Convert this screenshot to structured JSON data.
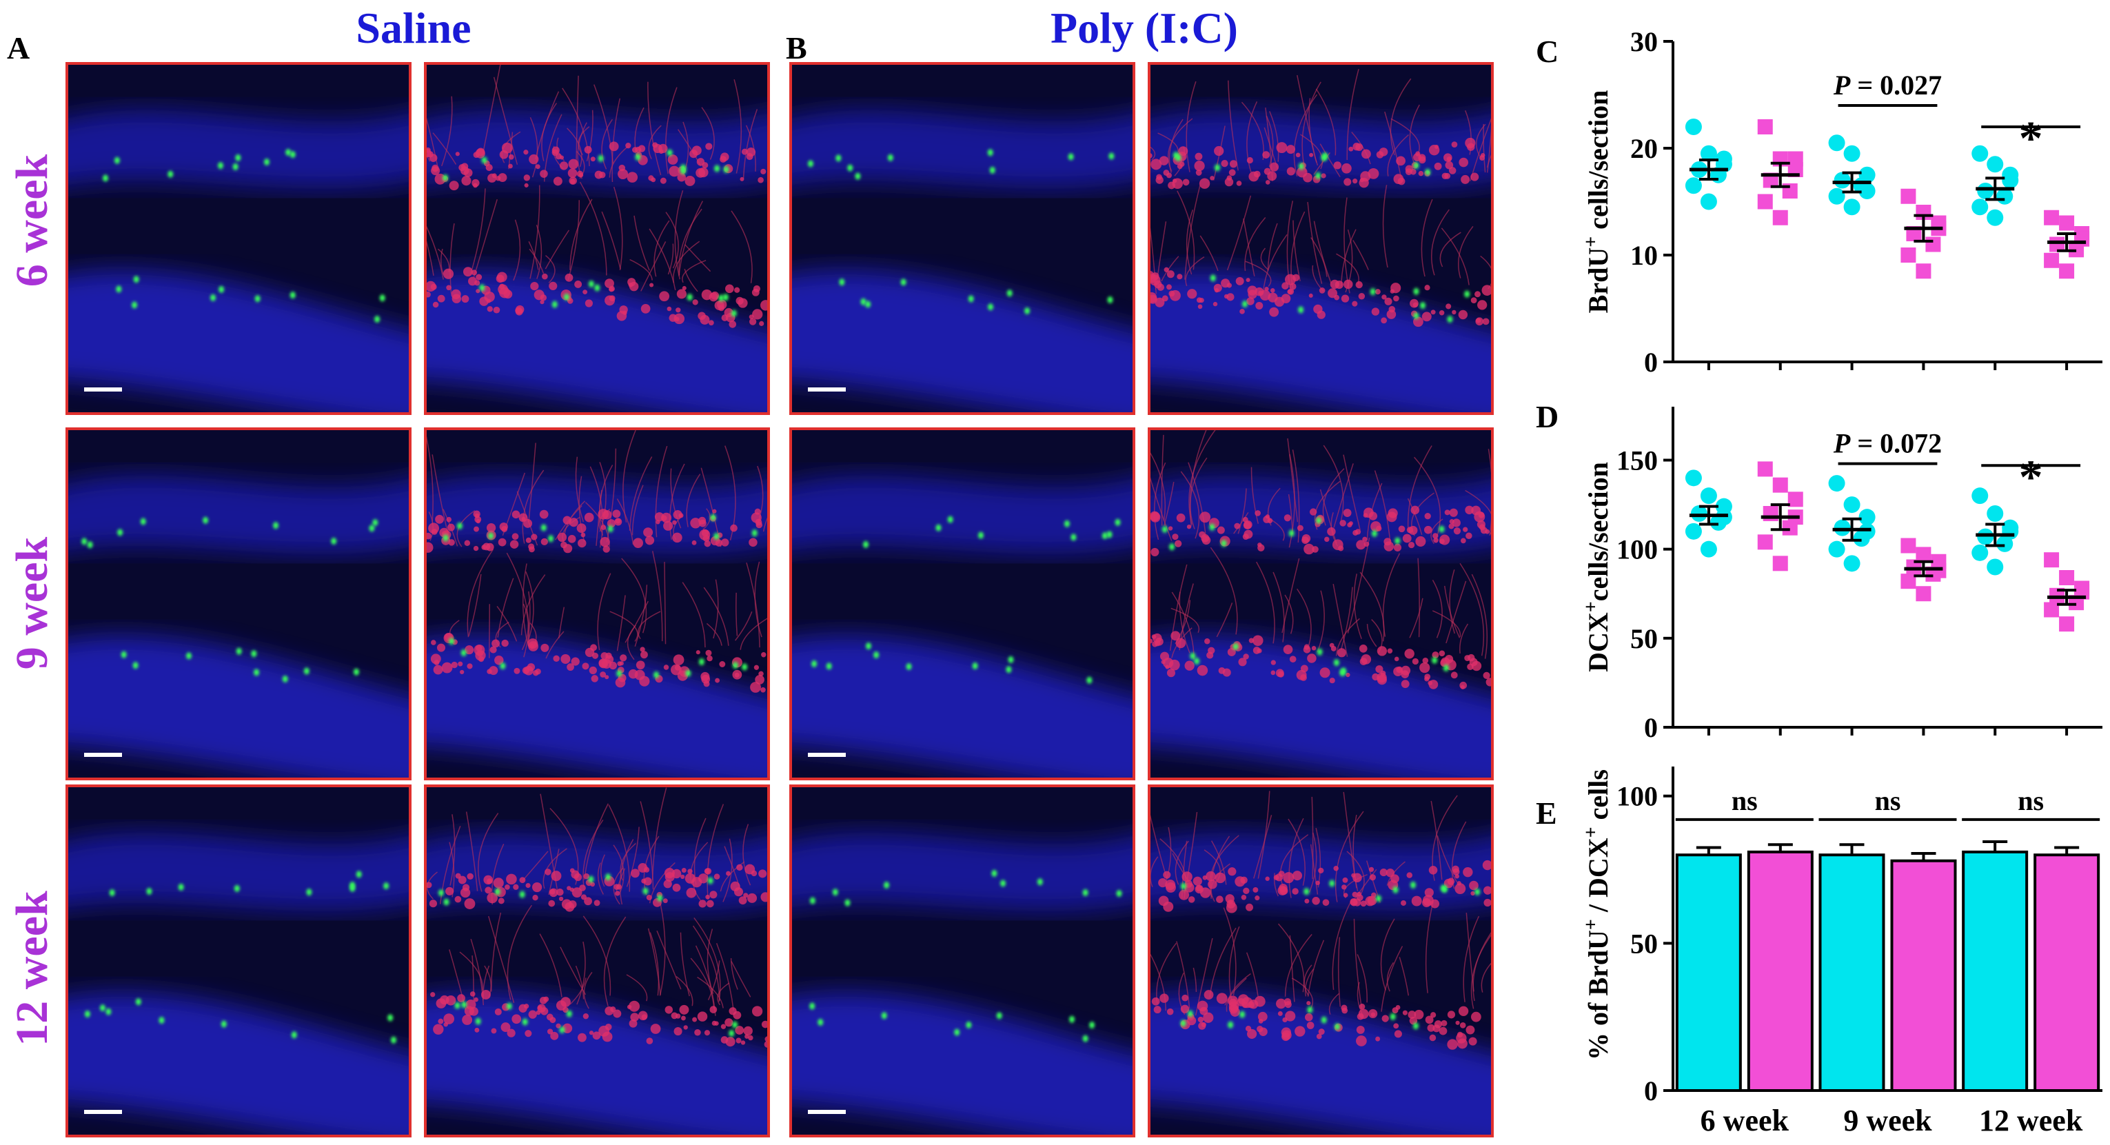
{
  "figure": {
    "panel_letters": [
      "A",
      "B",
      "C",
      "D",
      "E"
    ],
    "column_titles": [
      "Saline",
      "Poly (I:C)"
    ],
    "row_labels": [
      "6 week",
      "9 week",
      "12 week"
    ]
  },
  "colors": {
    "saline": "#00E5EE",
    "polyic": "#F24FD6",
    "title_blue": "#1a1ad6",
    "row_purple": "#a832d6",
    "panel_border": "#e0302e"
  },
  "chart_data": [
    {
      "panel": "C",
      "type": "scatter",
      "ylabel_main": "BrdU",
      "ylabel_sup": "+",
      "ylabel_rest": " cells/section",
      "ylim": [
        0,
        30
      ],
      "yticks": [
        0,
        10,
        20,
        30
      ],
      "groups": [
        {
          "week": "6 week",
          "treatment": "Saline",
          "mean": 18.0,
          "sem": 0.9,
          "points": [
            22,
            19.5,
            18.5,
            18,
            17.5,
            16.5,
            15,
            19
          ]
        },
        {
          "week": "6 week",
          "treatment": "Poly (I:C)",
          "mean": 17.5,
          "sem": 1.1,
          "points": [
            22,
            19,
            18,
            17,
            16,
            15,
            13.5,
            19
          ]
        },
        {
          "week": "9 week",
          "treatment": "Saline",
          "mean": 16.8,
          "sem": 0.9,
          "points": [
            20.5,
            19.5,
            17.5,
            17,
            16.5,
            15.5,
            14.5,
            16
          ]
        },
        {
          "week": "9 week",
          "treatment": "Poly (I:C)",
          "mean": 12.5,
          "sem": 1.2,
          "points": [
            15.5,
            14,
            13,
            12,
            11,
            10,
            8.5,
            12.5
          ]
        },
        {
          "week": "12 week",
          "treatment": "Saline",
          "mean": 16.2,
          "sem": 1.0,
          "points": [
            19.5,
            18.5,
            17.5,
            16,
            15.5,
            14.5,
            13.5,
            17
          ]
        },
        {
          "week": "12 week",
          "treatment": "Poly (I:C)",
          "mean": 11.2,
          "sem": 0.8,
          "points": [
            13.5,
            13,
            12,
            11,
            10.5,
            9.5,
            8.5,
            11.5
          ]
        }
      ],
      "annotations": [
        {
          "between": [
            2,
            3
          ],
          "text_italic": "P",
          "text_rest": " = 0.027",
          "y": 24
        },
        {
          "between": [
            4,
            5
          ],
          "text_italic": "",
          "text_rest": "*",
          "y": 22
        }
      ]
    },
    {
      "panel": "D",
      "type": "scatter",
      "ylabel_main": "DCX",
      "ylabel_sup": "+",
      "ylabel_rest": "cells/section",
      "ylim": [
        0,
        180
      ],
      "yticks": [
        0,
        50,
        100,
        150
      ],
      "groups": [
        {
          "week": "6 week",
          "treatment": "Saline",
          "mean": 119,
          "sem": 5,
          "points": [
            140,
            130,
            124,
            120,
            115,
            110,
            100,
            118
          ]
        },
        {
          "week": "6 week",
          "treatment": "Poly (I:C)",
          "mean": 118,
          "sem": 7,
          "points": [
            145,
            136,
            128,
            120,
            112,
            104,
            92,
            118
          ]
        },
        {
          "week": "9 week",
          "treatment": "Saline",
          "mean": 111,
          "sem": 6,
          "points": [
            137,
            125,
            118,
            112,
            106,
            100,
            92,
            110
          ]
        },
        {
          "week": "9 week",
          "treatment": "Poly (I:C)",
          "mean": 89,
          "sem": 4,
          "points": [
            102,
            97,
            93,
            90,
            86,
            82,
            75,
            88
          ]
        },
        {
          "week": "12 week",
          "treatment": "Saline",
          "mean": 108,
          "sem": 6,
          "points": [
            130,
            120,
            112,
            107,
            103,
            98,
            90,
            110
          ]
        },
        {
          "week": "12 week",
          "treatment": "Poly (I:C)",
          "mean": 73,
          "sem": 4,
          "points": [
            94,
            84,
            78,
            74,
            70,
            66,
            58,
            76
          ]
        }
      ],
      "annotations": [
        {
          "between": [
            2,
            3
          ],
          "text_italic": "P",
          "text_rest": " = 0.072",
          "y": 148
        },
        {
          "between": [
            4,
            5
          ],
          "text_italic": "",
          "text_rest": "*",
          "y": 147
        }
      ]
    },
    {
      "panel": "E",
      "type": "bar",
      "ylabel_parts": [
        "% of BrdU",
        "+",
        " / DCX",
        "+",
        " cells"
      ],
      "ylim": [
        0,
        110
      ],
      "yticks": [
        0,
        50,
        100
      ],
      "categories": [
        "6 week",
        "9 week",
        "12 week"
      ],
      "series": [
        {
          "name": "Saline",
          "values": [
            80,
            80,
            81
          ],
          "errors": [
            2.5,
            3.5,
            3.5
          ]
        },
        {
          "name": "Poly (I:C)",
          "values": [
            81,
            78,
            80
          ],
          "errors": [
            2.5,
            2.5,
            2.5
          ]
        }
      ],
      "annotations": [
        {
          "category": 0,
          "text": "ns",
          "y": 92
        },
        {
          "category": 1,
          "text": "ns",
          "y": 92
        },
        {
          "category": 2,
          "text": "ns",
          "y": 92
        }
      ]
    }
  ]
}
